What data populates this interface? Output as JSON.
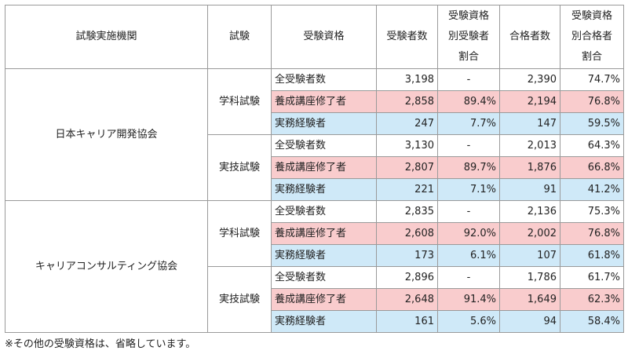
{
  "headers": [
    "試験実施機関",
    "試験",
    "受験資格",
    "受験者数",
    "受験資格別受験者割合",
    "合格者数",
    "受験資格別合格者割合"
  ],
  "header_lines": {
    "ratio_applicants": [
      "受験資格",
      "別受験者",
      "割合"
    ],
    "ratio_passers": [
      "受験資格",
      "別合格者",
      "割合"
    ]
  },
  "orgs": [
    {
      "name": "日本キャリア開発協会",
      "exams": [
        {
          "name": "学科試験",
          "rows": [
            {
              "qual": "全受験者数",
              "applicants": "3,198",
              "app_ratio": "-",
              "passers": "2,390",
              "pass_ratio": "74.7%"
            },
            {
              "qual": "養成講座修了者",
              "applicants": "2,858",
              "app_ratio": "89.4%",
              "passers": "2,194",
              "pass_ratio": "76.8%"
            },
            {
              "qual": "実務経験者",
              "applicants": "247",
              "app_ratio": "7.7%",
              "passers": "147",
              "pass_ratio": "59.5%"
            }
          ]
        },
        {
          "name": "実技試験",
          "rows": [
            {
              "qual": "全受験者数",
              "applicants": "3,130",
              "app_ratio": "-",
              "passers": "2,013",
              "pass_ratio": "64.3%"
            },
            {
              "qual": "養成講座修了者",
              "applicants": "2,807",
              "app_ratio": "89.7%",
              "passers": "1,876",
              "pass_ratio": "66.8%"
            },
            {
              "qual": "実務経験者",
              "applicants": "221",
              "app_ratio": "7.1%",
              "passers": "91",
              "pass_ratio": "41.2%"
            }
          ]
        }
      ]
    },
    {
      "name": "キャリアコンサルティング協会",
      "exams": [
        {
          "name": "学科試験",
          "rows": [
            {
              "qual": "全受験者数",
              "applicants": "2,835",
              "app_ratio": "-",
              "passers": "2,136",
              "pass_ratio": "75.3%"
            },
            {
              "qual": "養成講座修了者",
              "applicants": "2,608",
              "app_ratio": "92.0%",
              "passers": "2,002",
              "pass_ratio": "76.8%"
            },
            {
              "qual": "実務経験者",
              "applicants": "173",
              "app_ratio": "6.1%",
              "passers": "107",
              "pass_ratio": "61.8%"
            }
          ]
        },
        {
          "name": "実技試験",
          "rows": [
            {
              "qual": "全受験者数",
              "applicants": "2,896",
              "app_ratio": "-",
              "passers": "1,786",
              "pass_ratio": "61.7%"
            },
            {
              "qual": "養成講座修了者",
              "applicants": "2,648",
              "app_ratio": "91.4%",
              "passers": "1,649",
              "pass_ratio": "62.3%"
            },
            {
              "qual": "実務経験者",
              "applicants": "161",
              "app_ratio": "5.6%",
              "passers": "94",
              "pass_ratio": "58.4%"
            }
          ]
        }
      ]
    }
  ],
  "colors": {
    "highlight_pink": "#f9cccd",
    "highlight_blue": "#cfe9f8",
    "border": "#9a9a9a"
  },
  "note": "※その他の受験資格は、省略しています。"
}
